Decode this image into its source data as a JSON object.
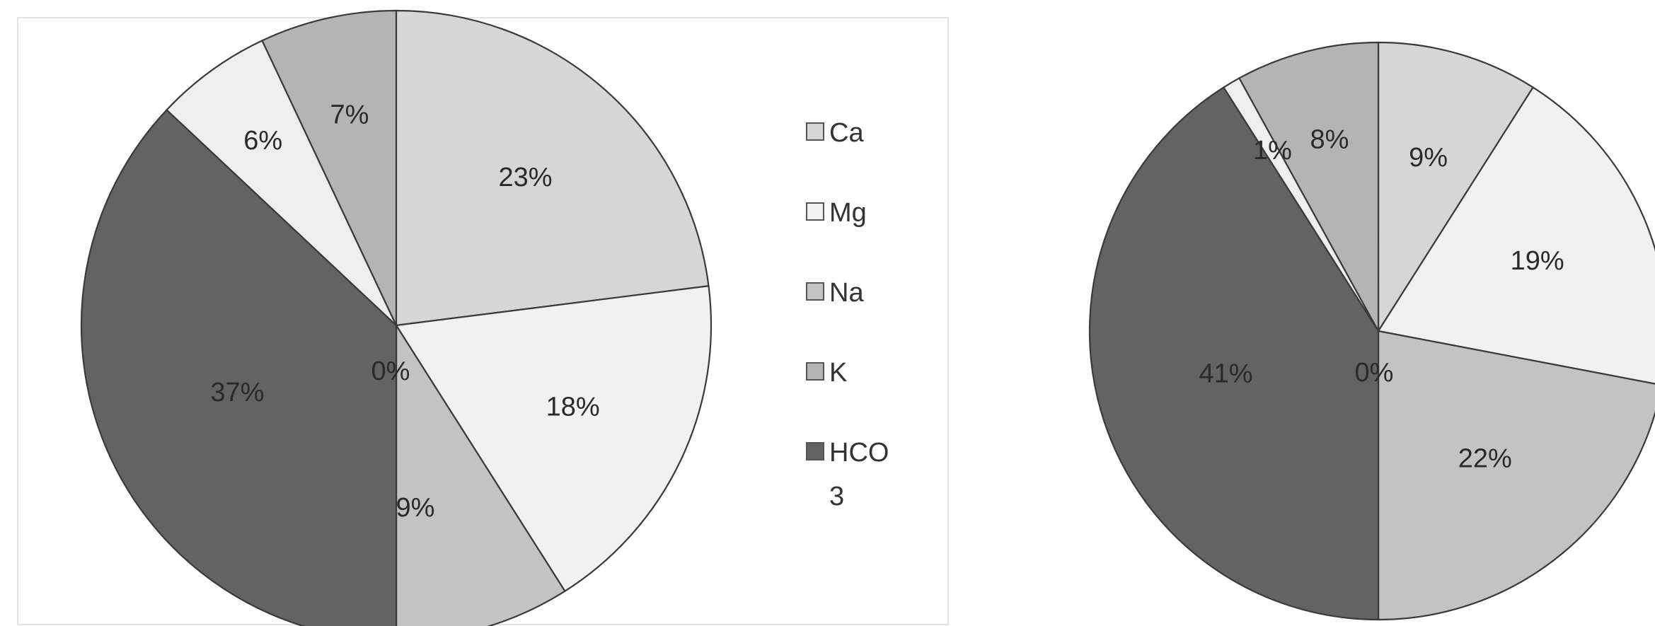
{
  "colors": {
    "Ca": "#d6d6d6",
    "Mg": "#f1f1f1",
    "Na": "#c3c3c3",
    "K": "#b4b4b4",
    "HCO3": "#636363",
    "gap": "#eeeeee"
  },
  "legend": {
    "items": [
      {
        "key": "Ca",
        "lines": [
          "Ca"
        ]
      },
      {
        "key": "Mg",
        "lines": [
          "Mg"
        ]
      },
      {
        "key": "Na",
        "lines": [
          "Na"
        ]
      },
      {
        "key": "K",
        "lines": [
          "K"
        ]
      },
      {
        "key": "HCO3",
        "lines": [
          "HCO",
          "3"
        ]
      }
    ]
  },
  "chart_data": [
    {
      "type": "pie",
      "legend_position": "right",
      "slices": [
        {
          "key": "Ca",
          "value": 23,
          "label": "23%"
        },
        {
          "key": "Mg",
          "value": 18,
          "label": "18%"
        },
        {
          "key": "Na",
          "value": 9,
          "label": "9%"
        },
        {
          "key": "K",
          "value": 0,
          "label": "0%"
        },
        {
          "key": "HCO3",
          "value": 37,
          "label": "37%"
        },
        {
          "key": "gap",
          "value": 6,
          "label": "6%"
        },
        {
          "key": "K",
          "value": 7,
          "label": "7%"
        }
      ]
    },
    {
      "type": "pie",
      "slices": [
        {
          "key": "Ca",
          "value": 9,
          "label": "9%"
        },
        {
          "key": "Mg",
          "value": 19,
          "label": "19%"
        },
        {
          "key": "Na",
          "value": 22,
          "label": "22%"
        },
        {
          "key": "K",
          "value": 0,
          "label": "0%"
        },
        {
          "key": "HCO3",
          "value": 41,
          "label": "41%"
        },
        {
          "key": "gap",
          "value": 1,
          "label": "1%"
        },
        {
          "key": "K",
          "value": 8,
          "label": "8%"
        }
      ]
    }
  ]
}
